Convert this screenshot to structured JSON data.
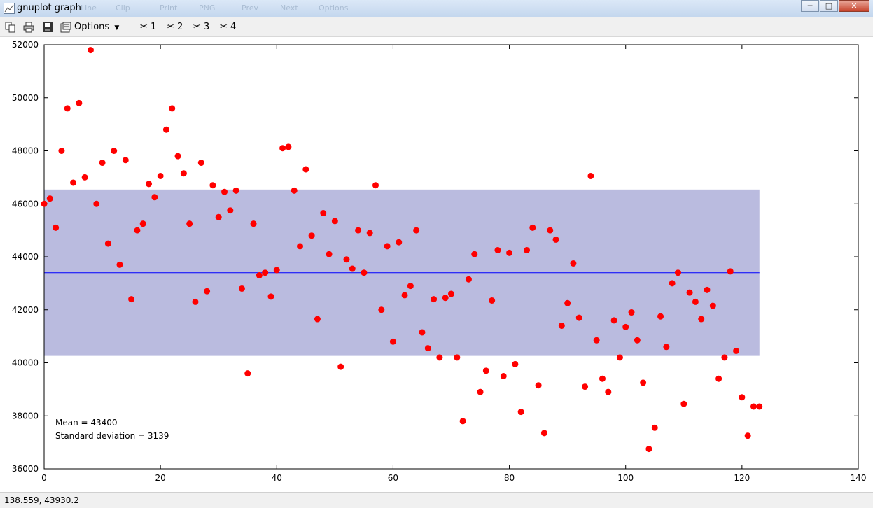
{
  "window": {
    "title": "gnuplot graph"
  },
  "titlebar_ghost": [
    "Line",
    "Clip",
    "Print",
    "PNG",
    "Prev",
    "Next",
    "Options"
  ],
  "toolbar": {
    "options_label": "Options",
    "grid_labels": [
      "1",
      "2",
      "3",
      "4"
    ]
  },
  "status": {
    "coordinates": "138.559,  43930.2"
  },
  "annotations": {
    "mean": "Mean = 43400",
    "stddev": "Standard deviation = 3139"
  },
  "chart_data": {
    "type": "scatter",
    "xlim": [
      0,
      140
    ],
    "ylim": [
      36000,
      52000
    ],
    "xticks": [
      0,
      20,
      40,
      60,
      80,
      100,
      120,
      140
    ],
    "yticks": [
      36000,
      38000,
      40000,
      42000,
      44000,
      46000,
      48000,
      50000,
      52000
    ],
    "grid": false,
    "mean": 43400,
    "band": [
      40261,
      46539
    ],
    "band_x_range": [
      0,
      123
    ],
    "colors": {
      "points": "#ff0000",
      "mean_line": "#0000ff",
      "band": "#babbdf"
    },
    "x": [
      0,
      1,
      2,
      3,
      4,
      5,
      6,
      7,
      8,
      9,
      10,
      11,
      12,
      13,
      14,
      15,
      16,
      17,
      18,
      19,
      20,
      21,
      22,
      23,
      24,
      25,
      26,
      27,
      28,
      29,
      30,
      31,
      32,
      33,
      34,
      35,
      36,
      37,
      38,
      39,
      40,
      41,
      42,
      43,
      44,
      45,
      46,
      47,
      48,
      49,
      50,
      51,
      52,
      53,
      54,
      55,
      56,
      57,
      58,
      59,
      60,
      61,
      62,
      63,
      64,
      65,
      66,
      67,
      68,
      69,
      70,
      71,
      72,
      73,
      74,
      75,
      76,
      77,
      78,
      79,
      80,
      81,
      82,
      83,
      84,
      85,
      86,
      87,
      88,
      89,
      90,
      91,
      92,
      93,
      94,
      95,
      96,
      97,
      98,
      99,
      100,
      101,
      102,
      103,
      104,
      105,
      106,
      107,
      108,
      109,
      110,
      111,
      112,
      113,
      114,
      115,
      116,
      117,
      118,
      119,
      120,
      121,
      122,
      123
    ],
    "y": [
      46000,
      46200,
      45100,
      48000,
      49600,
      46800,
      49800,
      47000,
      51800,
      46000,
      47550,
      44500,
      48000,
      43700,
      47650,
      42400,
      45000,
      45250,
      46750,
      46250,
      47050,
      48800,
      49600,
      47800,
      47150,
      45250,
      42300,
      47550,
      42700,
      46700,
      45500,
      46450,
      45750,
      46500,
      42800,
      39600,
      45250,
      43300,
      43400,
      42500,
      43500,
      48100,
      48150,
      46500,
      44400,
      47300,
      44800,
      41650,
      45650,
      44100,
      45350,
      39850,
      43900,
      43550,
      45000,
      43400,
      44900,
      46700,
      42000,
      44400,
      40800,
      44550,
      42550,
      42900,
      45000,
      41150,
      40550,
      42400,
      40200,
      42450,
      42600,
      40200,
      37800,
      43150,
      44100,
      38900,
      39700,
      42350,
      44250,
      39500,
      44150,
      39950,
      38150,
      44250,
      45100,
      39150,
      37350,
      45000,
      44650,
      41400,
      42250,
      43750,
      41700,
      39100,
      47050,
      40850,
      39400,
      38900,
      41600,
      40200,
      41350,
      41900,
      40850,
      39250,
      36750,
      37550,
      41750,
      40600,
      43000,
      43400,
      38450,
      42650,
      42300,
      41650,
      42750,
      42150,
      39400,
      40200,
      43450,
      40450,
      38700,
      37250,
      38350,
      38350
    ]
  }
}
